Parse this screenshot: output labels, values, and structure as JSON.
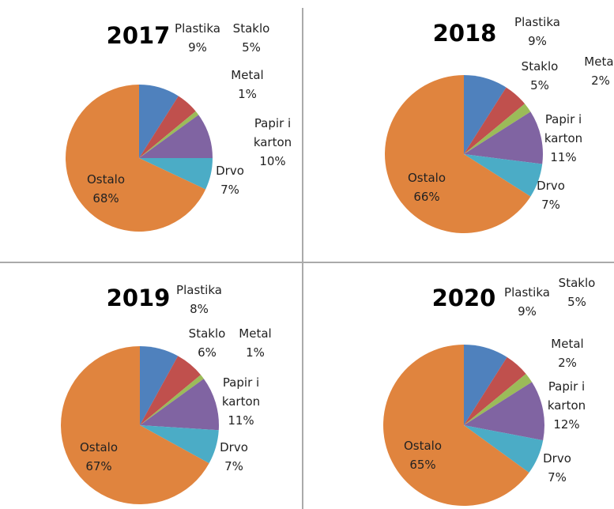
{
  "chart_data": [
    {
      "type": "pie",
      "title": "2017",
      "categories": [
        "Plastika",
        "Staklo",
        "Metal",
        "Papir i karton",
        "Drvo",
        "Ostalo"
      ],
      "values": [
        9,
        5,
        1,
        10,
        7,
        68
      ],
      "value_labels": [
        "9%",
        "5%",
        "1%",
        "10%",
        "7%",
        "68%"
      ],
      "colors": [
        "#4f81bd",
        "#c0504d",
        "#9bbb59",
        "#8064a2",
        "#4bacc6",
        "#e0843e"
      ]
    },
    {
      "type": "pie",
      "title": "2018",
      "categories": [
        "Plastika",
        "Staklo",
        "Metal",
        "Papir i karton",
        "Drvo",
        "Ostalo"
      ],
      "values": [
        9,
        5,
        2,
        11,
        7,
        66
      ],
      "value_labels": [
        "9%",
        "5%",
        "2%",
        "11%",
        "7%",
        "66%"
      ],
      "colors": [
        "#4f81bd",
        "#c0504d",
        "#9bbb59",
        "#8064a2",
        "#4bacc6",
        "#e0843e"
      ]
    },
    {
      "type": "pie",
      "title": "2019",
      "categories": [
        "Plastika",
        "Staklo",
        "Metal",
        "Papir i karton",
        "Drvo",
        "Ostalo"
      ],
      "values": [
        8,
        6,
        1,
        11,
        7,
        67
      ],
      "value_labels": [
        "8%",
        "6%",
        "1%",
        "11%",
        "7%",
        "67%"
      ],
      "colors": [
        "#4f81bd",
        "#c0504d",
        "#9bbb59",
        "#8064a2",
        "#4bacc6",
        "#e0843e"
      ]
    },
    {
      "type": "pie",
      "title": "2020",
      "categories": [
        "Plastika",
        "Staklo",
        "Metal",
        "Papir i karton",
        "Drvo",
        "Ostalo"
      ],
      "values": [
        9,
        5,
        2,
        12,
        7,
        65
      ],
      "value_labels": [
        "9%",
        "5%",
        "2%",
        "12%",
        "7%",
        "65%"
      ],
      "colors": [
        "#4f81bd",
        "#c0504d",
        "#9bbb59",
        "#8064a2",
        "#4bacc6",
        "#e0843e"
      ]
    }
  ]
}
